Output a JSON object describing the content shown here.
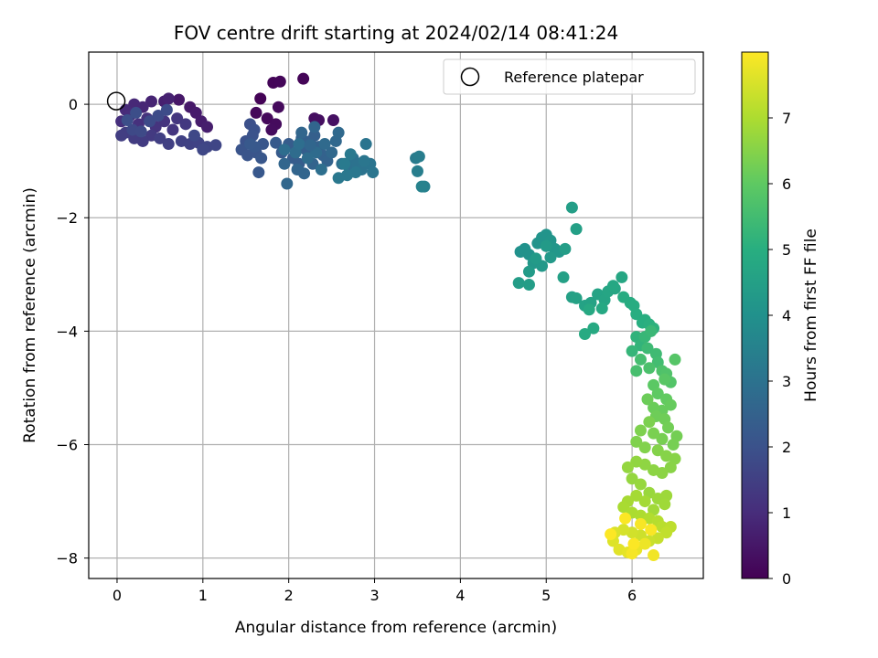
{
  "chart_data": {
    "type": "scatter",
    "title": "FOV centre drift starting at 2024/02/14 08:41:24",
    "xlabel": "Angular distance from reference (arcmin)",
    "ylabel": "Rotation from reference (arcmin)",
    "xlim": [
      -0.33,
      6.83
    ],
    "ylim": [
      -8.36,
      0.92
    ],
    "xticks": [
      0,
      1,
      2,
      3,
      4,
      5,
      6
    ],
    "yticks": [
      -8,
      -6,
      -4,
      -2,
      0
    ],
    "grid": true,
    "legend": {
      "placement": "top-right",
      "entries": [
        {
          "label": "Reference platepar",
          "marker": "open-circle"
        }
      ]
    },
    "reference_point": {
      "x": 0,
      "y": 0
    },
    "colorbar": {
      "label": "Hours from first FF file",
      "range": [
        0,
        8
      ],
      "ticks": [
        0,
        1,
        2,
        3,
        4,
        5,
        6,
        7
      ],
      "colormap": "viridis"
    },
    "points": [
      [
        1.67,
        0.1,
        0.05
      ],
      [
        1.82,
        0.38,
        0.1
      ],
      [
        1.9,
        0.4,
        0.12
      ],
      [
        2.17,
        0.45,
        0.08
      ],
      [
        1.62,
        -0.15,
        0.15
      ],
      [
        1.75,
        -0.25,
        0.18
      ],
      [
        1.88,
        -0.05,
        0.2
      ],
      [
        1.85,
        -0.35,
        0.22
      ],
      [
        1.8,
        -0.45,
        0.25
      ],
      [
        2.3,
        -0.25,
        0.3
      ],
      [
        2.35,
        -0.28,
        0.32
      ],
      [
        2.52,
        -0.28,
        0.35
      ],
      [
        0.72,
        0.08,
        0.5
      ],
      [
        0.85,
        -0.05,
        0.55
      ],
      [
        0.92,
        -0.15,
        0.6
      ],
      [
        0.98,
        -0.3,
        0.62
      ],
      [
        1.05,
        -0.4,
        0.65
      ],
      [
        0.55,
        0.05,
        0.7
      ],
      [
        0.6,
        0.1,
        0.75
      ],
      [
        0.4,
        0.05,
        0.8
      ],
      [
        0.3,
        -0.05,
        0.85
      ],
      [
        0.2,
        0.0,
        0.9
      ],
      [
        0.1,
        -0.1,
        0.95
      ],
      [
        0.15,
        -0.2,
        1.0
      ],
      [
        0.05,
        -0.3,
        1.05
      ],
      [
        0.25,
        -0.35,
        1.1
      ],
      [
        0.35,
        -0.25,
        1.15
      ],
      [
        0.45,
        -0.4,
        1.18
      ],
      [
        0.55,
        -0.3,
        1.2
      ],
      [
        0.65,
        -0.45,
        1.25
      ],
      [
        0.7,
        -0.25,
        1.28
      ],
      [
        0.8,
        -0.35,
        1.3
      ],
      [
        0.4,
        -0.55,
        1.35
      ],
      [
        0.3,
        -0.65,
        1.38
      ],
      [
        0.2,
        -0.6,
        1.4
      ],
      [
        0.1,
        -0.5,
        1.42
      ],
      [
        0.05,
        -0.55,
        1.45
      ],
      [
        0.5,
        -0.6,
        1.48
      ],
      [
        0.6,
        -0.7,
        1.5
      ],
      [
        0.75,
        -0.65,
        1.55
      ],
      [
        0.85,
        -0.7,
        1.58
      ],
      [
        0.95,
        -0.68,
        1.6
      ],
      [
        1.05,
        -0.75,
        1.65
      ],
      [
        1.15,
        -0.72,
        1.68
      ],
      [
        1.0,
        -0.8,
        1.7
      ],
      [
        0.9,
        -0.55,
        1.72
      ],
      [
        0.18,
        -0.45,
        1.75
      ],
      [
        0.28,
        -0.48,
        1.78
      ],
      [
        0.38,
        -0.3,
        1.8
      ],
      [
        0.48,
        -0.2,
        1.82
      ],
      [
        0.58,
        -0.1,
        1.85
      ],
      [
        0.12,
        -0.28,
        1.88
      ],
      [
        0.22,
        -0.15,
        1.9
      ],
      [
        1.55,
        -0.35,
        1.95
      ],
      [
        1.6,
        -0.45,
        1.98
      ],
      [
        1.5,
        -0.65,
        2.0
      ],
      [
        1.58,
        -0.55,
        2.02
      ],
      [
        1.45,
        -0.8,
        2.05
      ],
      [
        1.52,
        -0.9,
        2.08
      ],
      [
        1.62,
        -0.85,
        2.1
      ],
      [
        1.7,
        -0.7,
        2.12
      ],
      [
        1.68,
        -0.95,
        2.15
      ],
      [
        1.65,
        -1.2,
        2.18
      ],
      [
        1.6,
        -0.75,
        2.2
      ],
      [
        1.55,
        -0.7,
        2.22
      ],
      [
        1.85,
        -0.68,
        2.25
      ],
      [
        1.92,
        -0.85,
        2.28
      ],
      [
        2.0,
        -0.7,
        2.3
      ],
      [
        2.05,
        -0.95,
        2.32
      ],
      [
        2.12,
        -1.05,
        2.35
      ],
      [
        2.2,
        -0.8,
        2.38
      ],
      [
        2.25,
        -0.65,
        2.4
      ],
      [
        2.3,
        -0.55,
        2.42
      ],
      [
        2.15,
        -0.6,
        2.45
      ],
      [
        2.35,
        -0.75,
        2.48
      ],
      [
        2.4,
        -0.9,
        2.5
      ],
      [
        2.45,
        -1.0,
        2.52
      ],
      [
        2.28,
        -1.05,
        2.55
      ],
      [
        2.18,
        -1.22,
        2.58
      ],
      [
        2.1,
        -1.15,
        2.6
      ],
      [
        1.95,
        -1.05,
        2.62
      ],
      [
        1.98,
        -1.4,
        2.65
      ],
      [
        2.5,
        -0.85,
        2.68
      ],
      [
        2.55,
        -0.65,
        2.7
      ],
      [
        2.58,
        -0.5,
        2.72
      ],
      [
        2.42,
        -0.7,
        2.75
      ],
      [
        2.32,
        -0.85,
        2.78
      ],
      [
        2.22,
        -0.95,
        2.8
      ],
      [
        2.08,
        -0.85,
        2.82
      ],
      [
        1.95,
        -0.8,
        2.85
      ],
      [
        2.12,
        -0.7,
        2.88
      ],
      [
        2.38,
        -1.15,
        2.9
      ],
      [
        2.62,
        -1.05,
        2.92
      ],
      [
        2.7,
        -1.1,
        2.95
      ],
      [
        2.75,
        -0.95,
        2.98
      ],
      [
        2.8,
        -1.05,
        3.0
      ],
      [
        2.85,
        -1.15,
        3.02
      ],
      [
        2.9,
        -0.7,
        3.05
      ],
      [
        2.95,
        -1.05,
        3.08
      ],
      [
        2.98,
        -1.2,
        3.1
      ],
      [
        2.88,
        -1.0,
        3.12
      ],
      [
        2.78,
        -1.2,
        3.15
      ],
      [
        2.68,
        -1.25,
        3.18
      ],
      [
        2.58,
        -1.3,
        3.2
      ],
      [
        2.72,
        -0.88,
        3.22
      ],
      [
        2.65,
        -1.05,
        3.25
      ],
      [
        3.48,
        -0.95,
        3.3
      ],
      [
        3.52,
        -0.92,
        3.35
      ],
      [
        3.5,
        -1.18,
        3.4
      ],
      [
        3.58,
        -1.45,
        3.45
      ],
      [
        3.55,
        -1.45,
        3.5
      ],
      [
        2.3,
        -0.4,
        2.6
      ],
      [
        2.15,
        -0.5,
        2.62
      ],
      [
        2.25,
        -0.72,
        2.64
      ],
      [
        4.7,
        -2.6,
        4.0
      ],
      [
        4.75,
        -2.55,
        4.02
      ],
      [
        4.8,
        -2.65,
        4.05
      ],
      [
        4.9,
        -2.45,
        4.08
      ],
      [
        4.95,
        -2.35,
        4.1
      ],
      [
        5.0,
        -2.3,
        4.12
      ],
      [
        5.05,
        -2.4,
        4.15
      ],
      [
        5.1,
        -2.55,
        4.18
      ],
      [
        5.15,
        -2.6,
        4.2
      ],
      [
        4.85,
        -2.8,
        4.22
      ],
      [
        4.95,
        -2.85,
        4.25
      ],
      [
        5.05,
        -2.7,
        4.28
      ],
      [
        5.0,
        -2.5,
        4.3
      ],
      [
        4.88,
        -2.72,
        4.32
      ],
      [
        4.8,
        -2.95,
        4.35
      ],
      [
        4.68,
        -3.15,
        4.38
      ],
      [
        4.8,
        -3.18,
        4.4
      ],
      [
        5.22,
        -2.55,
        4.42
      ],
      [
        5.3,
        -1.82,
        4.45
      ],
      [
        5.35,
        -2.2,
        4.48
      ],
      [
        5.2,
        -3.05,
        4.5
      ],
      [
        5.3,
        -3.4,
        4.52
      ],
      [
        5.35,
        -3.42,
        4.55
      ],
      [
        5.45,
        -3.55,
        4.58
      ],
      [
        5.52,
        -3.5,
        4.6
      ],
      [
        5.6,
        -3.35,
        4.62
      ],
      [
        5.68,
        -3.45,
        4.65
      ],
      [
        5.72,
        -3.3,
        4.68
      ],
      [
        5.8,
        -3.25,
        4.7
      ],
      [
        5.88,
        -3.05,
        4.72
      ],
      [
        5.78,
        -3.2,
        4.75
      ],
      [
        5.65,
        -3.6,
        4.78
      ],
      [
        5.5,
        -3.62,
        4.8
      ],
      [
        5.55,
        -3.95,
        4.82
      ],
      [
        5.45,
        -4.05,
        4.85
      ],
      [
        5.9,
        -3.4,
        4.88
      ],
      [
        5.98,
        -3.5,
        4.9
      ],
      [
        6.02,
        -3.55,
        4.92
      ],
      [
        6.05,
        -3.7,
        4.95
      ],
      [
        6.15,
        -3.8,
        4.98
      ],
      [
        6.12,
        -3.85,
        5.0
      ],
      [
        6.2,
        -3.88,
        5.05
      ],
      [
        6.25,
        -3.95,
        5.1
      ],
      [
        6.05,
        -4.1,
        5.15
      ],
      [
        6.1,
        -4.25,
        5.2
      ],
      [
        6.0,
        -4.35,
        5.25
      ],
      [
        6.15,
        -4.1,
        5.3
      ],
      [
        6.22,
        -4.0,
        5.35
      ],
      [
        6.18,
        -4.3,
        5.4
      ],
      [
        6.28,
        -4.4,
        5.45
      ],
      [
        6.3,
        -4.55,
        5.5
      ],
      [
        6.1,
        -4.5,
        5.55
      ],
      [
        6.05,
        -4.7,
        5.6
      ],
      [
        6.2,
        -4.65,
        5.65
      ],
      [
        6.35,
        -4.7,
        5.7
      ],
      [
        6.4,
        -4.75,
        5.75
      ],
      [
        6.45,
        -4.9,
        5.8
      ],
      [
        6.5,
        -4.5,
        5.85
      ],
      [
        6.38,
        -4.85,
        5.9
      ],
      [
        6.25,
        -4.95,
        5.95
      ],
      [
        6.3,
        -5.1,
        6.0
      ],
      [
        6.4,
        -5.2,
        6.05
      ],
      [
        6.45,
        -5.3,
        6.1
      ],
      [
        6.35,
        -5.4,
        6.12
      ],
      [
        6.25,
        -5.35,
        6.15
      ],
      [
        6.18,
        -5.2,
        6.18
      ],
      [
        6.28,
        -5.5,
        6.2
      ],
      [
        6.38,
        -5.55,
        6.22
      ],
      [
        6.42,
        -5.7,
        6.25
      ],
      [
        6.52,
        -5.85,
        6.28
      ],
      [
        6.48,
        -6.0,
        6.3
      ],
      [
        6.35,
        -5.9,
        6.32
      ],
      [
        6.25,
        -5.8,
        6.35
      ],
      [
        6.2,
        -5.6,
        6.38
      ],
      [
        6.1,
        -5.75,
        6.4
      ],
      [
        6.05,
        -5.95,
        6.42
      ],
      [
        6.15,
        -6.05,
        6.45
      ],
      [
        6.3,
        -6.1,
        6.48
      ],
      [
        6.4,
        -6.2,
        6.5
      ],
      [
        6.5,
        -6.25,
        6.52
      ],
      [
        6.45,
        -6.4,
        6.55
      ],
      [
        6.35,
        -6.5,
        6.58
      ],
      [
        6.25,
        -6.45,
        6.6
      ],
      [
        6.15,
        -6.35,
        6.62
      ],
      [
        6.05,
        -6.3,
        6.65
      ],
      [
        5.95,
        -6.4,
        6.68
      ],
      [
        6.0,
        -6.6,
        6.7
      ],
      [
        6.1,
        -6.7,
        6.72
      ],
      [
        6.2,
        -6.85,
        6.75
      ],
      [
        6.3,
        -6.95,
        6.78
      ],
      [
        6.4,
        -6.9,
        6.8
      ],
      [
        6.38,
        -7.05,
        6.82
      ],
      [
        6.25,
        -7.15,
        6.85
      ],
      [
        6.15,
        -7.0,
        6.88
      ],
      [
        6.05,
        -6.9,
        6.9
      ],
      [
        5.95,
        -7.0,
        6.92
      ],
      [
        5.9,
        -7.1,
        6.95
      ],
      [
        6.0,
        -7.2,
        6.98
      ],
      [
        6.1,
        -7.25,
        7.0
      ],
      [
        6.2,
        -7.3,
        7.05
      ],
      [
        6.3,
        -7.35,
        7.1
      ],
      [
        6.35,
        -7.45,
        7.15
      ],
      [
        6.45,
        -7.45,
        7.2
      ],
      [
        6.4,
        -7.55,
        7.25
      ],
      [
        6.3,
        -7.65,
        7.3
      ],
      [
        6.2,
        -7.7,
        7.35
      ],
      [
        6.1,
        -7.6,
        7.4
      ],
      [
        6.0,
        -7.55,
        7.45
      ],
      [
        5.9,
        -7.5,
        7.5
      ],
      [
        5.8,
        -7.55,
        7.55
      ],
      [
        5.78,
        -7.7,
        7.6
      ],
      [
        5.85,
        -7.85,
        7.65
      ],
      [
        5.95,
        -7.9,
        7.7
      ],
      [
        6.05,
        -7.85,
        7.75
      ],
      [
        6.15,
        -7.75,
        7.8
      ],
      [
        6.25,
        -7.95,
        7.85
      ],
      [
        6.0,
        -7.92,
        7.9
      ],
      [
        6.1,
        -7.4,
        7.92
      ],
      [
        6.22,
        -7.5,
        7.95
      ],
      [
        5.92,
        -7.3,
        7.97
      ],
      [
        5.75,
        -7.58,
        7.99
      ],
      [
        6.02,
        -7.75,
        7.98
      ]
    ]
  }
}
